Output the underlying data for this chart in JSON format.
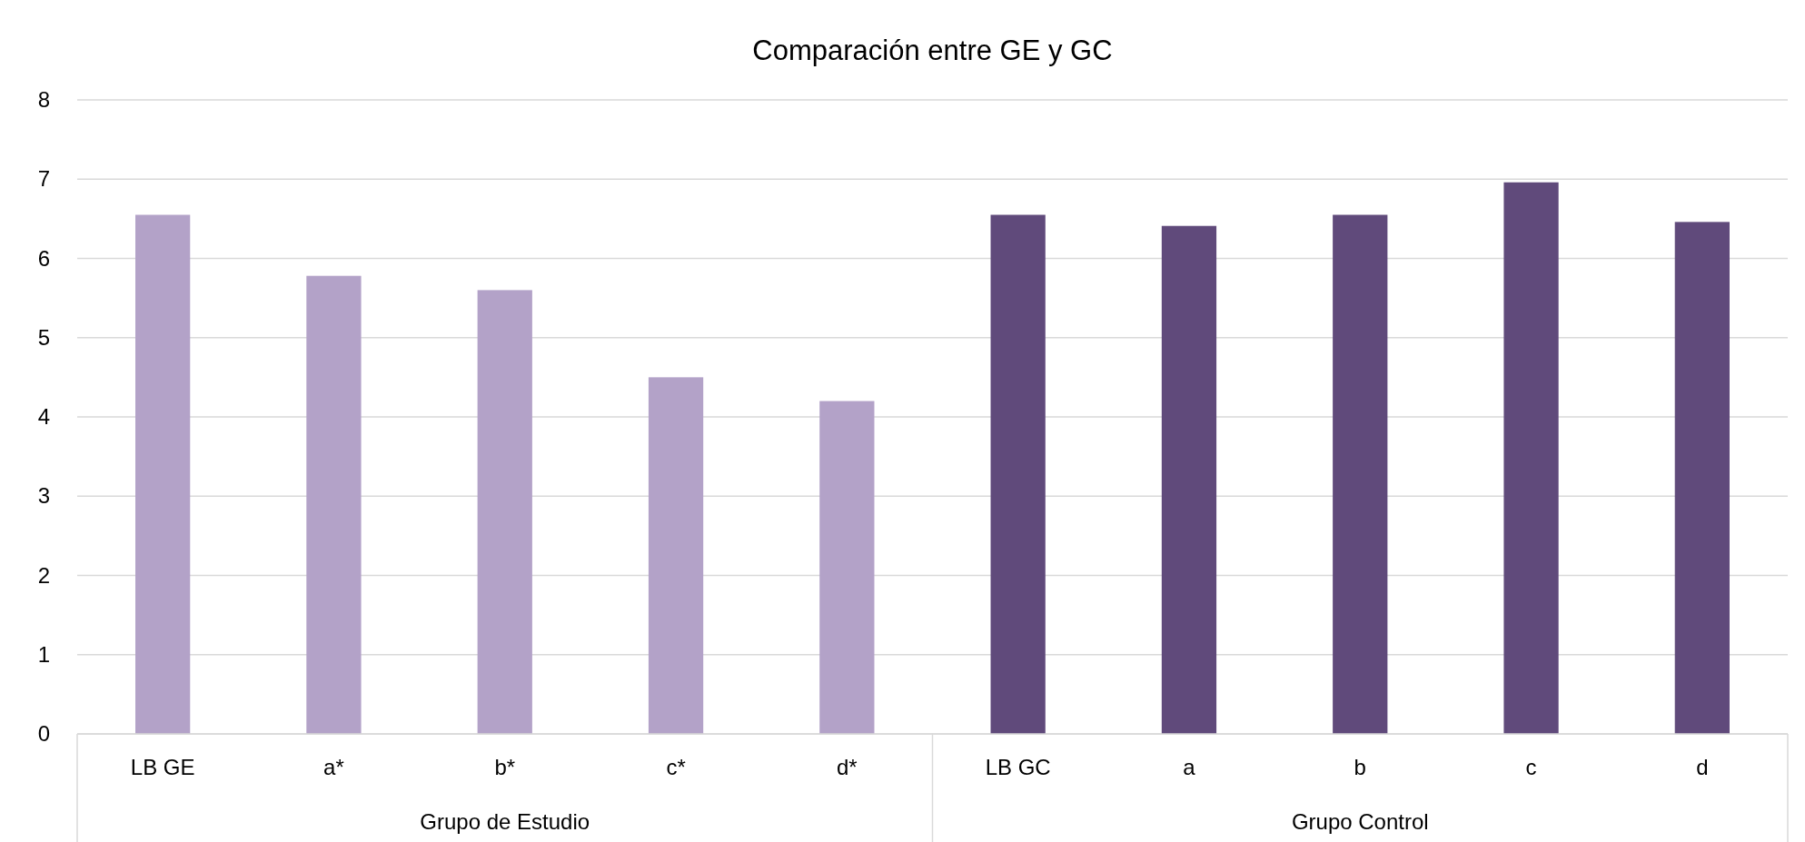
{
  "chart_data": {
    "type": "bar",
    "title": "Comparación entre GE y GC",
    "categories": [
      "LB GE",
      "a*",
      "b*",
      "c*",
      "d*",
      "LB GC",
      "a",
      "b",
      "c",
      "d"
    ],
    "values": [
      6.55,
      5.78,
      5.6,
      4.5,
      4.2,
      6.55,
      6.41,
      6.55,
      6.96,
      6.46
    ],
    "colors": [
      "#b3a2c8",
      "#b3a2c8",
      "#b3a2c8",
      "#b3a2c8",
      "#b3a2c8",
      "#604a7b",
      "#604a7b",
      "#604a7b",
      "#604a7b",
      "#604a7b"
    ],
    "annotations": [
      "Grupo de Estudio",
      "Grupo Control"
    ],
    "ylim": [
      0,
      8
    ],
    "yticks": [
      0,
      1,
      2,
      3,
      4,
      5,
      6,
      7,
      8
    ],
    "grid": "y"
  }
}
